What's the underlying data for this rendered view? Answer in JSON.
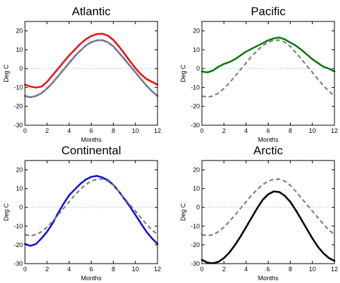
{
  "chart_data": [
    {
      "type": "line",
      "title": "Atlantic",
      "xlabel": "Months",
      "ylabel": "Deg C",
      "xlim": [
        0,
        12
      ],
      "ylim": [
        -30,
        25
      ],
      "xticks": [
        "0",
        "2",
        "4",
        "6",
        "8",
        "10",
        "12"
      ],
      "yticks": [
        "-30",
        "-20",
        "-10",
        "0",
        "10",
        "20"
      ],
      "zero_line": true,
      "series": [
        {
          "color": "#ee1111",
          "style": "solid",
          "x": [
            0,
            0.5,
            1,
            1.5,
            2,
            2.5,
            3,
            3.5,
            4,
            4.5,
            5,
            5.5,
            6,
            6.5,
            7,
            7.5,
            8,
            8.5,
            9,
            9.5,
            10,
            10.5,
            11,
            11.5,
            12
          ],
          "y": [
            -8.5,
            -9.5,
            -10,
            -9.5,
            -7,
            -3.5,
            0,
            3.5,
            7,
            10,
            13,
            15.5,
            17.3,
            18.3,
            18.5,
            17.5,
            15.2,
            11.8,
            8,
            4,
            0.2,
            -3,
            -5.5,
            -7,
            -8.5
          ]
        },
        {
          "color": "#6a6aa8",
          "style": "solid",
          "x": [
            0,
            0.5,
            1,
            1.5,
            2,
            2.5,
            3,
            3.5,
            4,
            4.5,
            5,
            5.5,
            6,
            6.5,
            7,
            7.5,
            8,
            8.5,
            9,
            9.5,
            10,
            10.5,
            11,
            11.5,
            12
          ],
          "y": [
            -14.5,
            -15.2,
            -14.5,
            -13,
            -10.5,
            -7.5,
            -4,
            -0.5,
            3,
            6.5,
            9.5,
            12.2,
            14,
            15,
            15.1,
            14,
            11.8,
            8.5,
            5,
            1.5,
            -2,
            -5.5,
            -9,
            -12,
            -14.5
          ]
        },
        {
          "color": "#808080",
          "style": "dashed",
          "x": [
            0,
            0.5,
            1,
            1.5,
            2,
            2.5,
            3,
            3.5,
            4,
            4.5,
            5,
            5.5,
            6,
            6.5,
            7,
            7.5,
            8,
            8.5,
            9,
            9.5,
            10,
            10.5,
            11,
            11.5,
            12
          ],
          "y": [
            -14.5,
            -15.2,
            -14.5,
            -13,
            -10.5,
            -7.5,
            -4,
            -0.5,
            3,
            6.5,
            9.5,
            12.2,
            14,
            15,
            15.1,
            14,
            11.8,
            8.5,
            5,
            1.5,
            -2,
            -5.5,
            -9,
            -12,
            -14.5
          ]
        }
      ]
    },
    {
      "type": "line",
      "title": "Pacific",
      "xlabel": "Months",
      "ylabel": "Deg C",
      "xlim": [
        0,
        12
      ],
      "ylim": [
        -30,
        25
      ],
      "xticks": [
        "0",
        "2",
        "4",
        "6",
        "8",
        "10",
        "12"
      ],
      "yticks": [
        "-30",
        "-20",
        "-10",
        "0",
        "10",
        "20"
      ],
      "zero_line": true,
      "series": [
        {
          "color": "#117711",
          "style": "solid",
          "x": [
            0,
            0.5,
            1,
            1.5,
            2,
            2.5,
            3,
            3.5,
            4,
            4.5,
            5,
            5.5,
            6,
            6.5,
            7,
            7.5,
            8,
            8.5,
            9,
            9.5,
            10,
            10.5,
            11,
            11.5,
            12
          ],
          "y": [
            -1.5,
            -2,
            -1,
            1,
            2.5,
            3.5,
            5,
            7,
            9,
            10.5,
            12,
            13.5,
            15,
            16,
            16.5,
            15.5,
            13.8,
            12.2,
            10,
            7.5,
            5,
            3,
            1,
            0,
            -1.5
          ]
        },
        {
          "color": "#808080",
          "style": "dashed",
          "x": [
            0,
            0.5,
            1,
            1.5,
            2,
            2.5,
            3,
            3.5,
            4,
            4.5,
            5,
            5.5,
            6,
            6.5,
            7,
            7.5,
            8,
            8.5,
            9,
            9.5,
            10,
            10.5,
            11,
            11.5,
            12
          ],
          "y": [
            -14.5,
            -15.2,
            -14.5,
            -13,
            -10.5,
            -7.5,
            -4,
            -0.5,
            3,
            6.5,
            9.5,
            12.2,
            14,
            15,
            15.1,
            14,
            11.8,
            8.5,
            5,
            1.5,
            -2,
            -5.5,
            -9,
            -12,
            -14.5
          ]
        }
      ]
    },
    {
      "type": "line",
      "title": "Continental",
      "xlabel": "Months",
      "ylabel": "Deg C",
      "xlim": [
        0,
        12
      ],
      "ylim": [
        -30,
        25
      ],
      "xticks": [
        "0",
        "2",
        "4",
        "6",
        "8",
        "10",
        "12"
      ],
      "yticks": [
        "-30",
        "-20",
        "-10",
        "0",
        "10",
        "20"
      ],
      "zero_line": true,
      "series": [
        {
          "color": "#1111dd",
          "style": "solid",
          "x": [
            0,
            0.5,
            1,
            1.5,
            2,
            2.5,
            3,
            3.5,
            4,
            4.5,
            5,
            5.5,
            6,
            6.5,
            7,
            7.5,
            8,
            8.5,
            9,
            9.5,
            10,
            10.5,
            11,
            11.5,
            12
          ],
          "y": [
            -19.5,
            -20.5,
            -19.5,
            -16.5,
            -13,
            -8.5,
            -3,
            2,
            6.5,
            9.5,
            12.5,
            14.8,
            16.3,
            16.8,
            16,
            14.5,
            12,
            8.5,
            4.5,
            0.5,
            -4,
            -8.5,
            -13,
            -16.5,
            -19.5
          ]
        },
        {
          "color": "#808080",
          "style": "dashed",
          "x": [
            0,
            0.5,
            1,
            1.5,
            2,
            2.5,
            3,
            3.5,
            4,
            4.5,
            5,
            5.5,
            6,
            6.5,
            7,
            7.5,
            8,
            8.5,
            9,
            9.5,
            10,
            10.5,
            11,
            11.5,
            12
          ],
          "y": [
            -14.5,
            -15.2,
            -14.5,
            -13,
            -10.5,
            -7.5,
            -4,
            -0.5,
            3,
            6.5,
            9.5,
            12.2,
            14,
            15,
            15.1,
            14,
            11.8,
            8.5,
            5,
            1.5,
            -2,
            -5.5,
            -9,
            -12,
            -14.5
          ]
        }
      ]
    },
    {
      "type": "line",
      "title": "Arctic",
      "xlabel": "Months",
      "ylabel": "Deg C",
      "xlim": [
        0,
        12
      ],
      "ylim": [
        -30,
        25
      ],
      "xticks": [
        "0",
        "2",
        "4",
        "6",
        "8",
        "10",
        "12"
      ],
      "yticks": [
        "-30",
        "-20",
        "-10",
        "0",
        "10",
        "20"
      ],
      "zero_line": true,
      "series": [
        {
          "color": "#000000",
          "style": "solid",
          "x": [
            0,
            0.5,
            1,
            1.5,
            2,
            2.5,
            3,
            3.5,
            4,
            4.5,
            5,
            5.5,
            6,
            6.5,
            7,
            7.5,
            8,
            8.5,
            9,
            9.5,
            10,
            10.5,
            11,
            11.5,
            12
          ],
          "y": [
            -28,
            -29.5,
            -29.8,
            -29,
            -27,
            -24,
            -20,
            -15.5,
            -10.5,
            -5.5,
            -0.5,
            4,
            7,
            8.5,
            8.2,
            6.2,
            3,
            -1.5,
            -6.5,
            -11.5,
            -16.5,
            -21,
            -24.5,
            -27,
            -28.5
          ]
        },
        {
          "color": "#808080",
          "style": "dashed",
          "x": [
            0,
            0.5,
            1,
            1.5,
            2,
            2.5,
            3,
            3.5,
            4,
            4.5,
            5,
            5.5,
            6,
            6.5,
            7,
            7.5,
            8,
            8.5,
            9,
            9.5,
            10,
            10.5,
            11,
            11.5,
            12
          ],
          "y": [
            -14.5,
            -15.2,
            -14.5,
            -13,
            -10.5,
            -7.5,
            -4,
            -0.5,
            3,
            6.5,
            9.5,
            12.2,
            14,
            15,
            15.1,
            14,
            11.8,
            8.5,
            5,
            1.5,
            -2,
            -5.5,
            -9,
            -12,
            -14.5
          ]
        }
      ]
    }
  ]
}
